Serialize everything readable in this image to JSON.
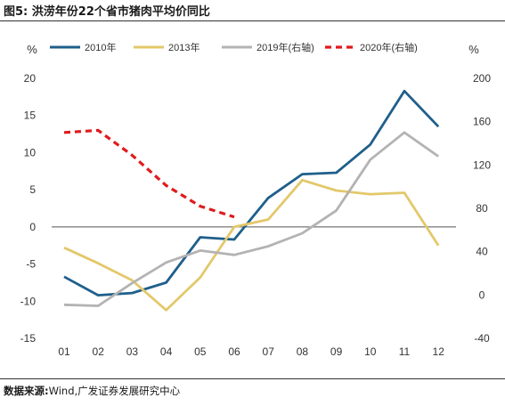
{
  "figure": {
    "label": "图5:",
    "title": "洪涝年份22个省市猪肉平均价同比",
    "source_label": "数据来源:",
    "source_text": "Wind,广发证券发展研究中心"
  },
  "chart_data": {
    "type": "line",
    "categories": [
      "01",
      "02",
      "03",
      "04",
      "05",
      "06",
      "07",
      "08",
      "09",
      "10",
      "11",
      "12"
    ],
    "y_left": {
      "unit": "%",
      "range": [
        -15,
        20
      ],
      "ticks": [
        -15,
        -10,
        -5,
        0,
        5,
        10,
        15,
        20
      ]
    },
    "y_right": {
      "unit": "%",
      "range": [
        -40,
        200
      ],
      "ticks": [
        -40,
        0,
        40,
        80,
        120,
        160,
        200
      ]
    },
    "grid": false,
    "legend_position": "top",
    "series": [
      {
        "name": "2010年",
        "axis": "left",
        "color": "#1f5f8b",
        "dash": "solid",
        "values": [
          -6.7,
          -9.2,
          -8.9,
          -7.5,
          -1.4,
          -1.7,
          3.9,
          7.1,
          7.3,
          11.1,
          18.3,
          13.5
        ]
      },
      {
        "name": "2013年",
        "axis": "left",
        "color": "#e3c86a",
        "dash": "solid",
        "values": [
          -2.8,
          -4.9,
          -7.2,
          -11.2,
          -6.8,
          0.0,
          1.0,
          6.3,
          4.9,
          4.4,
          4.6,
          -2.5
        ]
      },
      {
        "name": "2019年(右轴)",
        "axis": "right",
        "color": "#b3b3b3",
        "dash": "solid",
        "values": [
          -9,
          -10,
          11,
          30,
          41,
          37,
          45,
          57,
          78,
          125,
          150,
          128
        ]
      },
      {
        "name": "2020年(右轴)",
        "axis": "right",
        "color": "#e01b1b",
        "dash": "dashed",
        "values": [
          150,
          152,
          129,
          101,
          82,
          72,
          null,
          null,
          null,
          null,
          null,
          null
        ]
      }
    ]
  }
}
